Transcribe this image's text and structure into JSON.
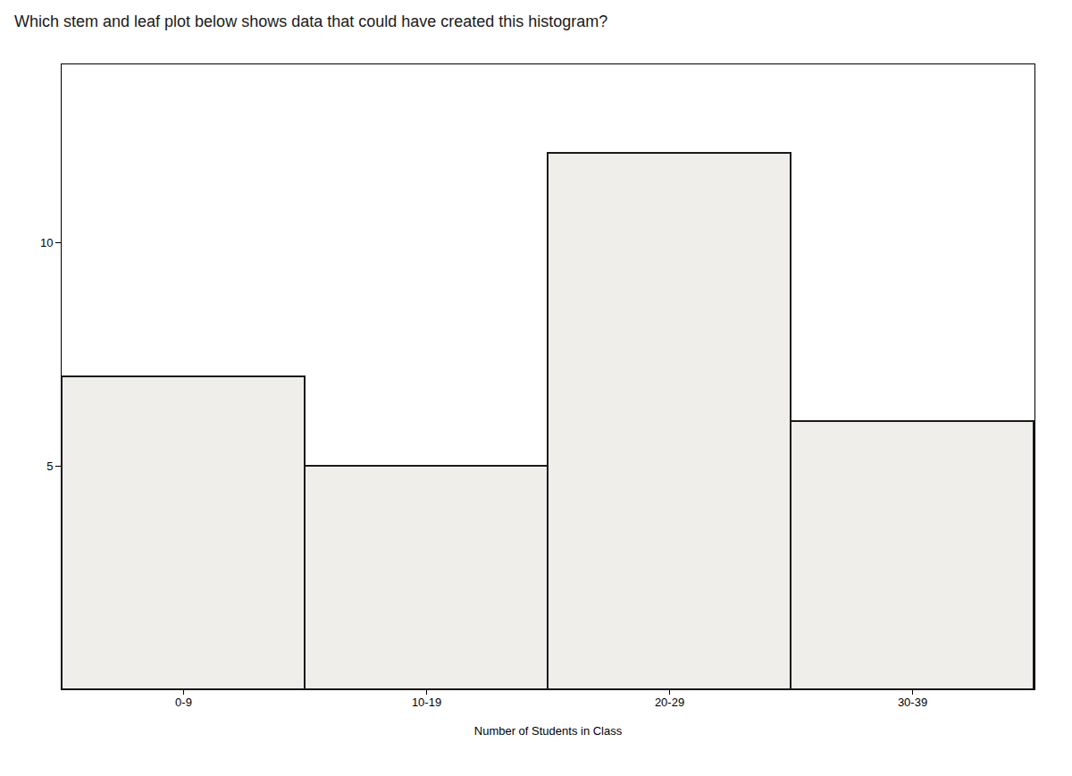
{
  "chart_data": {
    "type": "bar",
    "title": "Which stem and leaf plot below shows data that could have created this histogram?",
    "categories": [
      "0-9",
      "10-19",
      "20-29",
      "30-39"
    ],
    "values": [
      7,
      5,
      12,
      6
    ],
    "color": "#f0eeeb",
    "xlabel": "Number of Students in Class",
    "ylim": [
      0,
      14
    ],
    "yticks": [
      5,
      10
    ],
    "grid": false
  }
}
